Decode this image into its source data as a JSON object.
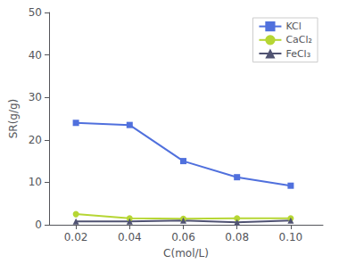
{
  "chart_data": {
    "type": "line",
    "x": [
      0.02,
      0.04,
      0.06,
      0.08,
      0.1
    ],
    "series": [
      {
        "name": "KCl",
        "values": [
          24.0,
          23.5,
          15.0,
          11.2,
          9.2
        ],
        "marker": "square"
      },
      {
        "name": "CaCl₂",
        "values": [
          2.5,
          1.5,
          1.4,
          1.5,
          1.5
        ],
        "marker": "circle"
      },
      {
        "name": "FeCl₃",
        "values": [
          0.8,
          0.8,
          1.0,
          0.6,
          1.0
        ],
        "marker": "triangle"
      }
    ],
    "xlabel": "C(mol/L)",
    "ylabel": "SR(g/g)",
    "xlim": [
      0.01,
      0.112
    ],
    "ylim": [
      0,
      50
    ],
    "xticks": [
      0.02,
      0.04,
      0.06,
      0.08,
      {
        "value": 0.1,
        "label": "0.10"
      }
    ],
    "yticks": [
      0,
      10,
      20,
      30,
      40,
      50
    ],
    "legend": "upper right",
    "grid": false
  }
}
